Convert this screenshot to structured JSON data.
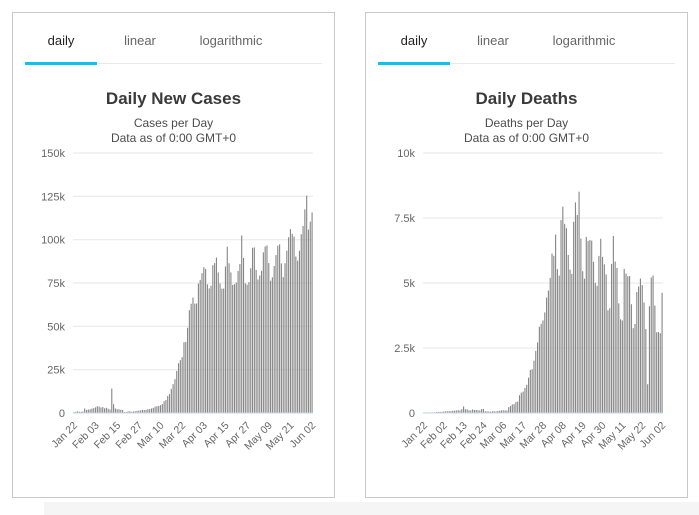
{
  "tabs": {
    "daily": "daily",
    "linear": "linear",
    "logarithmic": "logarithmic"
  },
  "active_tab": "daily",
  "colors": {
    "accent": "#0cc2ef",
    "bar": "#878787",
    "grid_line": "#e7e7e7",
    "axis_line": "#ccd6eb",
    "axis_label": "#666666",
    "title": "#3a3a3a",
    "card_border": "#c9c9c9"
  },
  "chart_data": [
    {
      "type": "bar",
      "title": "Daily New Cases",
      "subtitle_line1": "Cases per Day",
      "subtitle_line2": "Data as of 0:00 GMT+0",
      "xlabel": "",
      "ylabel": "",
      "ylim": [
        0,
        150000
      ],
      "grid": true,
      "legend": "none",
      "x_start": "Jan 22",
      "x_end": "Jun 02",
      "ytick_values": [
        0,
        25000,
        50000,
        75000,
        100000,
        125000,
        150000
      ],
      "ytick_labels": [
        "0",
        "25k",
        "50k",
        "75k",
        "100k",
        "125k",
        "150k"
      ],
      "xtick_indices": [
        0,
        12,
        24,
        36,
        48,
        60,
        72,
        84,
        96,
        108,
        120,
        132
      ],
      "xtick_labels": [
        "Jan 22",
        "Feb 03",
        "Feb 15",
        "Feb 27",
        "Mar 10",
        "Mar 22",
        "Apr 03",
        "Apr 15",
        "Apr 27",
        "May 09",
        "May 21",
        "Jun 02"
      ],
      "values": [
        450,
        650,
        900,
        750,
        700,
        800,
        2600,
        1750,
        2000,
        2100,
        2600,
        2800,
        3250,
        3900,
        3700,
        3200,
        3400,
        2700,
        3000,
        2500,
        2000,
        14100,
        5100,
        2650,
        2200,
        2100,
        1900,
        1750,
        550,
        600,
        900,
        1000,
        650,
        900,
        1000,
        1250,
        1400,
        1500,
        1800,
        1700,
        1850,
        2200,
        2250,
        2650,
        2900,
        3650,
        3900,
        4050,
        4500,
        5150,
        6800,
        7500,
        9800,
        10900,
        13900,
        16600,
        19500,
        24300,
        28700,
        30500,
        32200,
        40800,
        41000,
        49200,
        59300,
        63000,
        66600,
        63100,
        63200,
        74700,
        76800,
        80700,
        84100,
        83100,
        74200,
        71900,
        73400,
        85300,
        86500,
        89700,
        81100,
        74700,
        71700,
        71800,
        84500,
        95900,
        86400,
        81100,
        73900,
        74300,
        75300,
        81900,
        85900,
        102400,
        89500,
        74800,
        74000,
        75500,
        83500,
        95300,
        95500,
        82500,
        77000,
        79300,
        82100,
        92700,
        96100,
        96700,
        86500,
        76300,
        78300,
        84800,
        91100,
        96500,
        97300,
        86300,
        78400,
        86400,
        93700,
        101400,
        106100,
        103400,
        101800,
        90300,
        87900,
        93600,
        103100,
        107900,
        117500,
        125400,
        105800,
        110400,
        115700
      ]
    },
    {
      "type": "bar",
      "title": "Daily Deaths",
      "subtitle_line1": "Deaths per Day",
      "subtitle_line2": "Data as of 0:00 GMT+0",
      "xlabel": "",
      "ylabel": "",
      "ylim": [
        0,
        10000
      ],
      "grid": true,
      "legend": "none",
      "x_start": "Jan 22",
      "x_end": "Jun 02",
      "ytick_values": [
        0,
        2500,
        5000,
        7500,
        10000
      ],
      "ytick_labels": [
        "0",
        "2.5k",
        "5k",
        "7.5k",
        "10k"
      ],
      "xtick_indices": [
        0,
        11,
        22,
        33,
        44,
        55,
        66,
        77,
        88,
        99,
        110,
        121,
        132
      ],
      "xtick_labels": [
        "Jan 22",
        "Feb 02",
        "Feb 13",
        "Feb 24",
        "Mar 06",
        "Mar 17",
        "Mar 28",
        "Apr 08",
        "Apr 19",
        "Apr 30",
        "May 11",
        "May 22",
        "Jun 02"
      ],
      "values": [
        9,
        8,
        16,
        15,
        24,
        26,
        26,
        38,
        43,
        46,
        45,
        58,
        64,
        66,
        72,
        73,
        86,
        89,
        97,
        108,
        97,
        146,
        254,
        143,
        142,
        105,
        98,
        136,
        115,
        118,
        109,
        97,
        150,
        156,
        68,
        63,
        58,
        52,
        67,
        67,
        56,
        80,
        86,
        100,
        106,
        102,
        97,
        224,
        271,
        330,
        343,
        426,
        436,
        685,
        781,
        820,
        961,
        1086,
        1358,
        1658,
        1684,
        2010,
        2389,
        2714,
        3318,
        3429,
        3559,
        3869,
        4439,
        4708,
        5198,
        6132,
        6047,
        6861,
        5532,
        5283,
        7421,
        7935,
        7276,
        7105,
        6078,
        5516,
        5352,
        7355,
        8099,
        7614,
        8511,
        6710,
        5454,
        5165,
        6772,
        6620,
        6656,
        6626,
        5815,
        5003,
        4894,
        6042,
        6701,
        6005,
        5717,
        5327,
        3951,
        4030,
        5734,
        6810,
        5824,
        5580,
        4218,
        3604,
        3559,
        5543,
        5363,
        5259,
        5265,
        4184,
        3264,
        3423,
        4656,
        4864,
        5172,
        4920,
        4248,
        3228,
        1105,
        4108,
        5212,
        5288,
        4129,
        3104,
        3113,
        3069,
        4622
      ]
    }
  ]
}
